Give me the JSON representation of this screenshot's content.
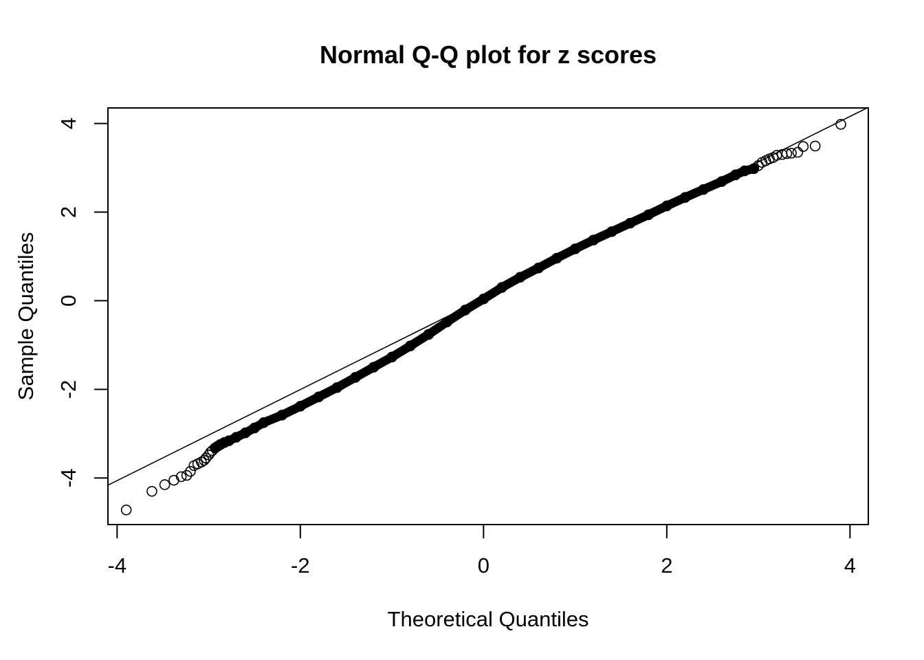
{
  "chart_data": {
    "type": "scatter",
    "title": "Normal Q-Q plot for z scores",
    "xlabel": "Theoretical Quantiles",
    "ylabel": "Sample Quantiles",
    "xlim": [
      -4.1,
      4.2
    ],
    "ylim": [
      -5.05,
      4.35
    ],
    "xticks": [
      -4,
      -2,
      0,
      2,
      4
    ],
    "xtick_labels": [
      "-4",
      "-2",
      "0",
      "2",
      "4"
    ],
    "yticks": [
      -4,
      -2,
      0,
      2,
      4
    ],
    "ytick_labels": [
      "-4",
      "-2",
      "0",
      "2",
      "4"
    ],
    "grid": false,
    "legend": "none",
    "marker": "open-circle",
    "reference_line": {
      "slope": 1.027,
      "intercept": 0.05
    },
    "series": [
      {
        "points": [
          [
            -3.9,
            -4.72
          ],
          [
            -3.62,
            -4.3
          ],
          [
            -3.48,
            -4.15
          ],
          [
            -3.38,
            -4.05
          ],
          [
            -3.3,
            -3.97
          ],
          [
            -3.24,
            -3.94
          ],
          [
            -3.2,
            -3.85
          ],
          [
            -3.16,
            -3.72
          ],
          [
            -3.12,
            -3.68
          ],
          [
            -3.08,
            -3.64
          ],
          [
            -3.05,
            -3.6
          ],
          [
            -3.03,
            -3.55
          ],
          [
            -3.0,
            -3.48
          ],
          [
            -2.98,
            -3.42
          ],
          [
            -2.96,
            -3.38
          ],
          [
            -2.93,
            -3.32
          ],
          [
            -2.9,
            -3.28
          ],
          [
            -2.87,
            -3.24
          ],
          [
            -2.83,
            -3.2
          ],
          [
            -2.78,
            -3.16
          ],
          [
            -2.7,
            -3.08
          ],
          [
            -2.6,
            -2.98
          ],
          [
            -2.5,
            -2.87
          ],
          [
            -2.4,
            -2.75
          ],
          [
            -2.2,
            -2.58
          ],
          [
            -2.0,
            -2.38
          ],
          [
            -1.8,
            -2.17
          ],
          [
            -1.6,
            -1.96
          ],
          [
            -1.4,
            -1.73
          ],
          [
            -1.2,
            -1.5
          ],
          [
            -1.0,
            -1.27
          ],
          [
            -0.8,
            -1.02
          ],
          [
            -0.6,
            -0.76
          ],
          [
            -0.4,
            -0.48
          ],
          [
            -0.2,
            -0.21
          ],
          [
            0.0,
            0.04
          ],
          [
            0.2,
            0.3
          ],
          [
            0.4,
            0.53
          ],
          [
            0.6,
            0.74
          ],
          [
            0.8,
            0.96
          ],
          [
            1.0,
            1.17
          ],
          [
            1.2,
            1.37
          ],
          [
            1.4,
            1.56
          ],
          [
            1.6,
            1.75
          ],
          [
            1.8,
            1.94
          ],
          [
            2.0,
            2.14
          ],
          [
            2.2,
            2.33
          ],
          [
            2.4,
            2.51
          ],
          [
            2.6,
            2.69
          ],
          [
            2.75,
            2.84
          ],
          [
            2.85,
            2.93
          ],
          [
            2.95,
            2.98
          ],
          [
            3.0,
            3.05
          ],
          [
            3.04,
            3.12
          ],
          [
            3.08,
            3.16
          ],
          [
            3.12,
            3.2
          ],
          [
            3.16,
            3.23
          ],
          [
            3.2,
            3.28
          ],
          [
            3.26,
            3.3
          ],
          [
            3.31,
            3.32
          ],
          [
            3.36,
            3.33
          ],
          [
            3.43,
            3.35
          ],
          [
            3.49,
            3.48
          ],
          [
            3.62,
            3.49
          ],
          [
            3.9,
            3.98
          ]
        ]
      }
    ]
  }
}
